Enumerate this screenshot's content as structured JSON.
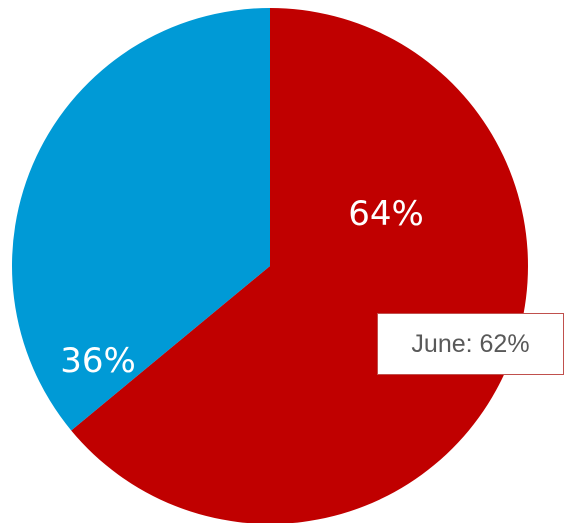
{
  "chart_data": {
    "type": "pie",
    "slices": [
      {
        "label": "64%",
        "value": 64,
        "color": "#c00000"
      },
      {
        "label": "36%",
        "value": 36,
        "color": "#009ad6"
      }
    ],
    "annotation": "June: 62%",
    "legend": "none"
  }
}
